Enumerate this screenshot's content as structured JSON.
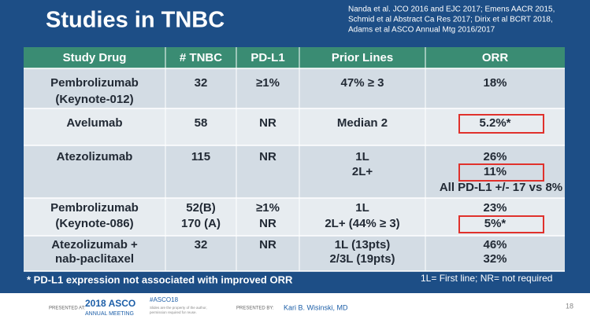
{
  "header": {
    "title": "Studies in TNBC",
    "references": [
      "Nanda et al. JCO 2016 and EJC 2017; Emens AACR 2015,",
      "Schmid et al Abstract Ca Res 2017; Dirix et al BCRT 2018,",
      "Adams et al ASCO Annual Mtg 2016/2017"
    ]
  },
  "table": {
    "columns": [
      "Study Drug",
      "# TNBC",
      "PD-L1",
      "Prior Lines",
      "ORR"
    ],
    "rows": [
      [
        [
          "Pembrolizumab",
          "(Keynote-012)"
        ],
        [
          "32"
        ],
        [
          "≥1%"
        ],
        [
          "47% ≥ 3"
        ],
        [
          "18%"
        ]
      ],
      [
        [
          "Avelumab"
        ],
        [
          "58"
        ],
        [
          "NR"
        ],
        [
          "Median 2"
        ],
        [
          "5.2%*"
        ]
      ],
      [
        [
          "Atezolizumab"
        ],
        [
          "115"
        ],
        [
          "NR"
        ],
        [
          "1L",
          "2L+"
        ],
        [
          "26%",
          "11%",
          "All PD-L1 +/- 17 vs 8%"
        ]
      ],
      [
        [
          "Pembrolizumab",
          "(Keynote-086)"
        ],
        [
          "52(B)",
          "170 (A)"
        ],
        [
          "≥1%",
          "NR"
        ],
        [
          "1L",
          "2L+ (44% ≥ 3)"
        ],
        [
          "23%",
          "5%*"
        ]
      ],
      [
        [
          "Atezolizumab +",
          "nab-paclitaxel"
        ],
        [
          "32"
        ],
        [
          "NR"
        ],
        [
          "1L (13pts)",
          "2/3L (19pts)"
        ],
        [
          "46%",
          "32%"
        ]
      ]
    ]
  },
  "notes": {
    "footnote": "* PD-L1 expression not associated with improved ORR",
    "legend": "1L= First line; NR= not required"
  },
  "footer": {
    "presented_at": "PRESENTED AT:",
    "meeting": [
      "2018 ASCO",
      "ANNUAL MEETING"
    ],
    "hashtag": "#ASCO18",
    "disclaimer": [
      "Slides are the property of the author,",
      "permission required for reuse."
    ],
    "presented_by_label": "PRESENTED BY:",
    "presenter": "Kari B. Wisinski, MD",
    "page": "18"
  }
}
